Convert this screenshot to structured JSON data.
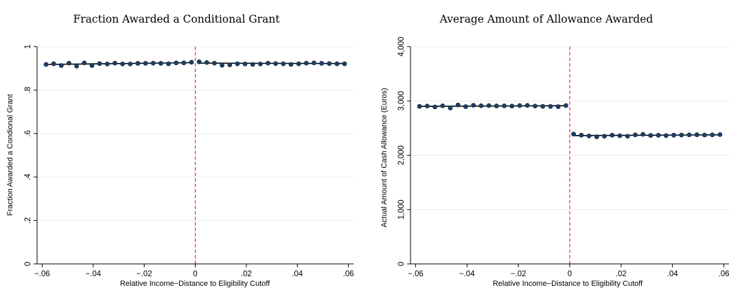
{
  "chart_data": [
    {
      "type": "scatter",
      "title": "Fraction Awarded a Conditional Grant",
      "xlabel": "Relative Income−Distance to Eligibility Cutoff",
      "ylabel": "Fraction Awarded a Condional Grant",
      "xlim": [
        -0.062,
        0.062
      ],
      "ylim": [
        0,
        1
      ],
      "xticks": [
        -0.06,
        -0.04,
        -0.02,
        0,
        0.02,
        0.04,
        0.06
      ],
      "xtick_labels": [
        "−.06",
        "−.04",
        "−.02",
        "0",
        ".02",
        ".04",
        ".06"
      ],
      "yticks": [
        0,
        0.2,
        0.4,
        0.6,
        0.8,
        1
      ],
      "ytick_labels": [
        "0",
        ".2",
        ".4",
        ".6",
        ".8",
        "1"
      ],
      "grid": true,
      "cutoff": 0,
      "x": [
        -0.0585,
        -0.0555,
        -0.0525,
        -0.0495,
        -0.0465,
        -0.0435,
        -0.0405,
        -0.0375,
        -0.0345,
        -0.0315,
        -0.0285,
        -0.0255,
        -0.0225,
        -0.0195,
        -0.0165,
        -0.0135,
        -0.0105,
        -0.0075,
        -0.0045,
        -0.0015,
        0.0015,
        0.0045,
        0.0075,
        0.0105,
        0.0135,
        0.0165,
        0.0195,
        0.0225,
        0.0255,
        0.0285,
        0.0315,
        0.0345,
        0.0375,
        0.0405,
        0.0435,
        0.0465,
        0.0495,
        0.0525,
        0.0555,
        0.0585
      ],
      "y": [
        0.918,
        0.921,
        0.913,
        0.924,
        0.91,
        0.925,
        0.913,
        0.922,
        0.92,
        0.924,
        0.92,
        0.92,
        0.923,
        0.923,
        0.924,
        0.923,
        0.921,
        0.925,
        0.925,
        0.928,
        0.93,
        0.927,
        0.924,
        0.914,
        0.916,
        0.921,
        0.92,
        0.918,
        0.92,
        0.924,
        0.922,
        0.921,
        0.918,
        0.921,
        0.924,
        0.925,
        0.923,
        0.922,
        0.921,
        0.921
      ],
      "fit_left": [
        [
          -0.0585,
          0.918
        ],
        [
          -0.0015,
          0.926
        ]
      ],
      "fit_right": [
        [
          0.0015,
          0.924
        ],
        [
          0.0585,
          0.922
        ]
      ]
    },
    {
      "type": "scatter",
      "title": "Average Amount of Allowance Awarded",
      "xlabel": "Relative Income−Distance to Eligibility Cutoff",
      "ylabel": "Actual Amount of Cash Allowance (Euros)",
      "xlim": [
        -0.062,
        0.062
      ],
      "ylim": [
        0,
        4000
      ],
      "xticks": [
        -0.06,
        -0.04,
        -0.02,
        0,
        0.02,
        0.04,
        0.06
      ],
      "xtick_labels": [
        "−.06",
        "−.04",
        "−.02",
        "0",
        ".02",
        ".04",
        ".06"
      ],
      "yticks": [
        0,
        1000,
        2000,
        3000,
        4000
      ],
      "ytick_labels": [
        "0",
        "1,000",
        "2,000",
        "3,000",
        "4,000"
      ],
      "grid": true,
      "cutoff": 0,
      "x": [
        -0.0585,
        -0.0555,
        -0.0525,
        -0.0495,
        -0.0465,
        -0.0435,
        -0.0405,
        -0.0375,
        -0.0345,
        -0.0315,
        -0.0285,
        -0.0255,
        -0.0225,
        -0.0195,
        -0.0165,
        -0.0135,
        -0.0105,
        -0.0075,
        -0.0045,
        -0.0015,
        0.0015,
        0.0045,
        0.0075,
        0.0105,
        0.0135,
        0.0165,
        0.0195,
        0.0225,
        0.0255,
        0.0285,
        0.0315,
        0.0345,
        0.0375,
        0.0405,
        0.0435,
        0.0465,
        0.0495,
        0.0525,
        0.0555,
        0.0585
      ],
      "y": [
        2900,
        2905,
        2890,
        2910,
        2870,
        2925,
        2895,
        2920,
        2912,
        2915,
        2908,
        2910,
        2905,
        2915,
        2918,
        2905,
        2900,
        2898,
        2895,
        2915,
        2390,
        2370,
        2355,
        2340,
        2350,
        2370,
        2360,
        2350,
        2375,
        2385,
        2365,
        2368,
        2362,
        2370,
        2372,
        2375,
        2378,
        2372,
        2375,
        2380
      ],
      "fit_left": [
        [
          -0.0585,
          2900
        ],
        [
          -0.0015,
          2912
        ]
      ],
      "fit_right": [
        [
          0.0015,
          2362
        ],
        [
          0.0585,
          2376
        ]
      ]
    }
  ]
}
